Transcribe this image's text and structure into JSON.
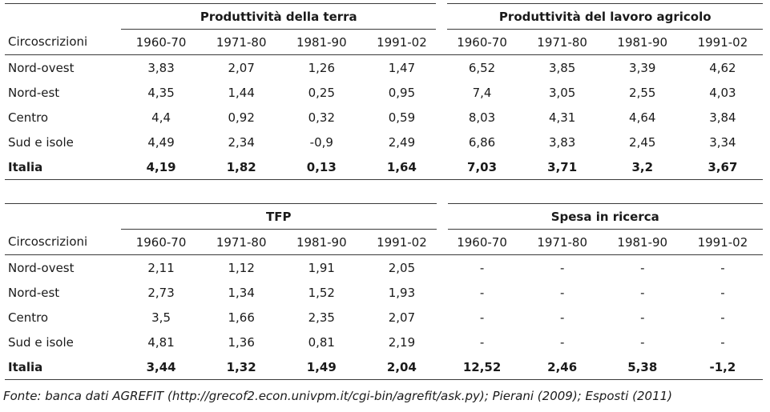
{
  "table1": {
    "group_left": "Produttività della terra",
    "group_right": "Produttività del lavoro agricolo",
    "row_header": "Circoscrizioni",
    "periods": [
      "1960-70",
      "1971-80",
      "1981-90",
      "1991-02",
      "1960-70",
      "1971-80",
      "1981-90",
      "1991-02"
    ],
    "rows": [
      {
        "label": "Nord-ovest",
        "values": [
          "3,83",
          "2,07",
          "1,26",
          "1,47",
          "6,52",
          "3,85",
          "3,39",
          "4,62"
        ]
      },
      {
        "label": "Nord-est",
        "values": [
          "4,35",
          "1,44",
          "0,25",
          "0,95",
          "7,4",
          "3,05",
          "2,55",
          "4,03"
        ]
      },
      {
        "label": "Centro",
        "values": [
          "4,4",
          "0,92",
          "0,32",
          "0,59",
          "8,03",
          "4,31",
          "4,64",
          "3,84"
        ]
      },
      {
        "label": "Sud e isole",
        "values": [
          "4,49",
          "2,34",
          "-0,9",
          "2,49",
          "6,86",
          "3,83",
          "2,45",
          "3,34"
        ]
      },
      {
        "label": "Italia",
        "values": [
          "4,19",
          "1,82",
          "0,13",
          "1,64",
          "7,03",
          "3,71",
          "3,2",
          "3,67"
        ]
      }
    ]
  },
  "table2": {
    "group_left": "TFP",
    "group_right": "Spesa in ricerca",
    "row_header": "Circoscrizioni",
    "periods": [
      "1960-70",
      "1971-80",
      "1981-90",
      "1991-02",
      "1960-70",
      "1971-80",
      "1981-90",
      "1991-02"
    ],
    "rows": [
      {
        "label": "Nord-ovest",
        "values": [
          "2,11",
          "1,12",
          "1,91",
          "2,05",
          "-",
          "-",
          "-",
          "-"
        ]
      },
      {
        "label": "Nord-est",
        "values": [
          "2,73",
          "1,34",
          "1,52",
          "1,93",
          "-",
          "-",
          "-",
          "-"
        ]
      },
      {
        "label": "Centro",
        "values": [
          "3,5",
          "1,66",
          "2,35",
          "2,07",
          "-",
          "-",
          "-",
          "-"
        ]
      },
      {
        "label": "Sud e isole",
        "values": [
          "4,81",
          "1,36",
          "0,81",
          "2,19",
          "-",
          "-",
          "-",
          "-"
        ]
      },
      {
        "label": "Italia",
        "values": [
          "3,44",
          "1,32",
          "1,49",
          "2,04",
          "12,52",
          "2,46",
          "5,38",
          "-1,2"
        ]
      }
    ]
  },
  "source": "Fonte: banca dati AGREFIT (http://grecof2.econ.univpm.it/cgi-bin/agrefit/ask.py); Pierani (2009); Esposti (2011)"
}
